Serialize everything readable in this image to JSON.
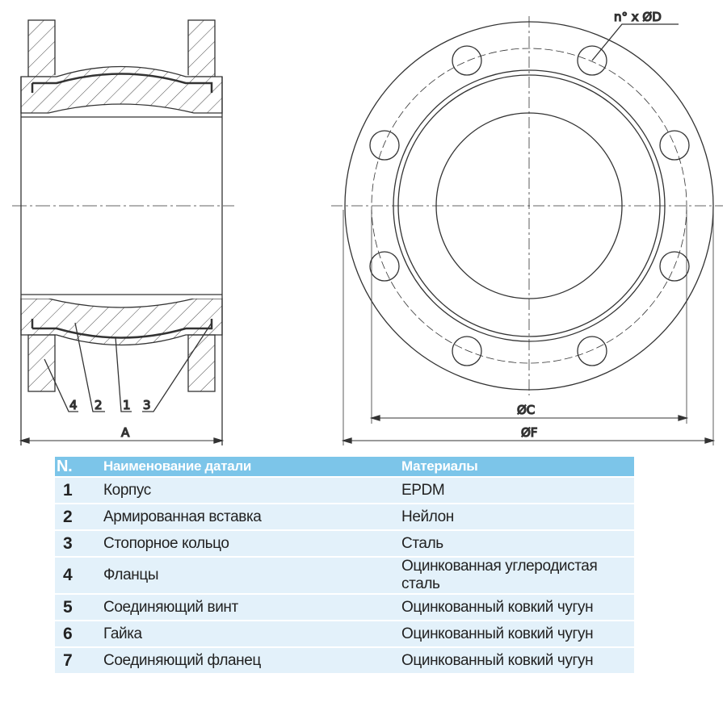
{
  "drawing": {
    "leader_labels": [
      "4",
      "2",
      "1",
      "3"
    ],
    "dim_length": "A",
    "dim_bolt_circle": "ØC",
    "dim_outer": "ØF",
    "bolt_note": "n° x ØD"
  },
  "table": {
    "headers": [
      "N.",
      "Наименование датали",
      "Материалы"
    ],
    "header_color": "#7cc5e9",
    "row_color": "#e3f1fa",
    "rows": [
      {
        "n": "1",
        "name": "Корпус",
        "material": "EPDM"
      },
      {
        "n": "2",
        "name": "Армированная вставка",
        "material": "Нейлон"
      },
      {
        "n": "3",
        "name": "Стопорное кольцо",
        "material": "Сталь"
      },
      {
        "n": "4",
        "name": "Фланцы",
        "material": "Оцинкованная углеродистая сталь"
      },
      {
        "n": "5",
        "name": "Соединяющий винт",
        "material": "Оцинкованный ковкий чугун"
      },
      {
        "n": "6",
        "name": "Гайка",
        "material": "Оцинкованный ковкий чугун"
      },
      {
        "n": "7",
        "name": "Соединяющий фланец",
        "material": "Оцинкованный ковкий чугун"
      }
    ]
  }
}
